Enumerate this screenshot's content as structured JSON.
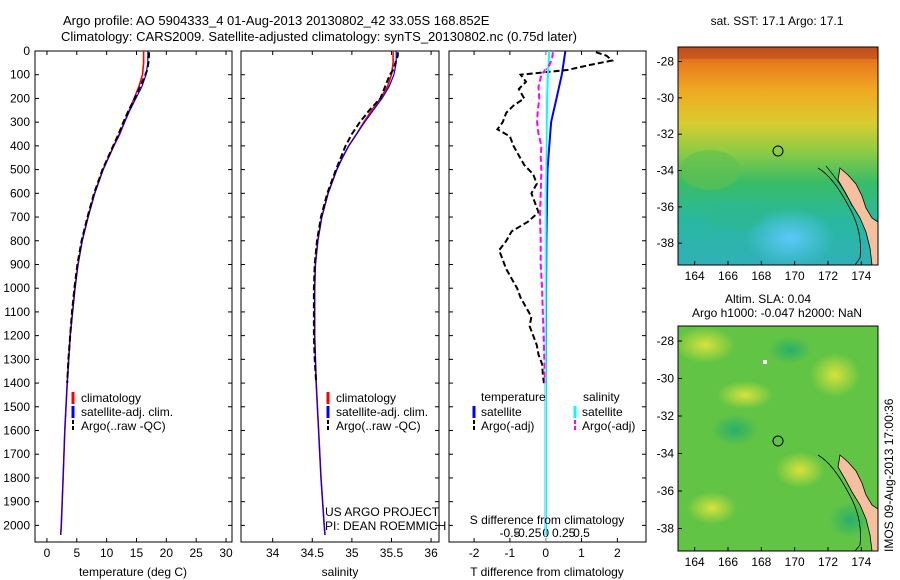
{
  "titles": {
    "line1": "Argo profile: AO 5904333_4 01-Aug-2013 20130802_42 33.05S 168.852E",
    "line2": "Climatology: CARS2009. Satellite-adjusted climatology: synTS_20130802.nc (0.75d later)"
  },
  "depth_ticks": [
    "0",
    "100",
    "200",
    "300",
    "400",
    "500",
    "600",
    "700",
    "800",
    "900",
    "1000",
    "1100",
    "1200",
    "1300",
    "1400",
    "1500",
    "1600",
    "1700",
    "1800",
    "1900",
    "2000"
  ],
  "legend_prof": {
    "clim": "climatology",
    "sat": "satellite-adj. clim.",
    "argo": "Argo(..raw -QC)"
  },
  "legend_diff": {
    "temp_head": "temperature",
    "sal_head": "salinity",
    "sat": "satellite",
    "argo": "Argo(-adj)"
  },
  "project": {
    "line1": "US ARGO PROJECT",
    "line2": "PI: DEAN ROEMMICH"
  },
  "colors": {
    "clim": "#ff0000",
    "sat": "#0000ff",
    "argo": "#000000",
    "sal_sat": "#00ffff",
    "sal_argo": "#ff00ff"
  },
  "chart_data": [
    {
      "type": "line",
      "name": "temperature profile",
      "xlabel": "temperature (deg C)",
      "ylabel": "",
      "xlim": [
        -2,
        31
      ],
      "ylim": [
        2070,
        0
      ],
      "xticks": [
        0,
        5,
        10,
        15,
        20,
        25,
        30
      ],
      "legend": "bottom-left",
      "series": [
        {
          "name": "climatology",
          "depth": [
            0,
            50,
            100,
            150,
            200,
            250,
            300,
            350,
            400,
            500,
            600,
            700,
            800,
            900,
            1000,
            1200,
            1400,
            1600,
            1800,
            2000,
            2040
          ],
          "values": [
            16.2,
            16.2,
            16.0,
            15.4,
            14.6,
            13.8,
            13.0,
            12.2,
            11.2,
            9.4,
            8.0,
            6.9,
            5.9,
            5.2,
            4.7,
            3.9,
            3.4,
            3.0,
            2.7,
            2.4,
            2.3
          ]
        },
        {
          "name": "satellite-adj. clim.",
          "depth": [
            0,
            50,
            100,
            150,
            200,
            250,
            300,
            350,
            400,
            500,
            600,
            700,
            800,
            900,
            1000,
            1200,
            1400,
            1600,
            1800,
            2000,
            2040
          ],
          "values": [
            16.9,
            16.9,
            16.6,
            15.9,
            14.9,
            13.9,
            13.0,
            12.1,
            11.2,
            9.4,
            8.0,
            6.9,
            5.9,
            5.2,
            4.7,
            3.9,
            3.4,
            3.0,
            2.7,
            2.4,
            2.3
          ]
        },
        {
          "name": "Argo(..raw -QC)",
          "depth": [
            5,
            20,
            50,
            80,
            100,
            150,
            200,
            250,
            300,
            350,
            400,
            500,
            600,
            700,
            800,
            900,
            1000,
            1100,
            1200,
            1300,
            1400
          ],
          "values": [
            17.1,
            17.1,
            17.0,
            16.8,
            16.5,
            15.6,
            14.7,
            13.7,
            12.8,
            12.0,
            11.1,
            9.3,
            7.9,
            6.8,
            5.8,
            5.1,
            4.6,
            4.2,
            3.9,
            3.6,
            3.4
          ]
        }
      ]
    },
    {
      "type": "line",
      "name": "salinity profile",
      "xlabel": "salinity",
      "xlim": [
        33.6,
        36.1
      ],
      "ylim": [
        2070,
        0
      ],
      "xticks": [
        34,
        34.5,
        35,
        35.5,
        36
      ],
      "xticklabels": [
        "34",
        "34.5",
        "35",
        "35.5",
        "36"
      ],
      "legend": "bottom-left",
      "series": [
        {
          "name": "climatology",
          "depth": [
            0,
            50,
            100,
            150,
            200,
            250,
            300,
            350,
            400,
            450,
            500,
            600,
            700,
            800,
            900,
            1000,
            1200,
            1400,
            1600,
            1800,
            2000,
            2040
          ],
          "values": [
            35.52,
            35.52,
            35.5,
            35.45,
            35.36,
            35.25,
            35.15,
            35.06,
            34.96,
            34.88,
            34.81,
            34.7,
            34.62,
            34.57,
            34.54,
            34.53,
            34.53,
            34.55,
            34.58,
            34.61,
            34.65,
            34.66
          ]
        },
        {
          "name": "satellite-adj. clim.",
          "depth": [
            0,
            50,
            100,
            150,
            200,
            250,
            300,
            350,
            400,
            450,
            500,
            600,
            700,
            800,
            900,
            1000,
            1200,
            1400,
            1600,
            1800,
            2000,
            2040
          ],
          "values": [
            35.56,
            35.56,
            35.53,
            35.47,
            35.38,
            35.27,
            35.16,
            35.06,
            34.96,
            34.88,
            34.81,
            34.7,
            34.62,
            34.57,
            34.54,
            34.53,
            34.53,
            34.55,
            34.58,
            34.61,
            34.65,
            34.66
          ]
        },
        {
          "name": "Argo(..raw -QC)",
          "depth": [
            5,
            20,
            50,
            80,
            100,
            150,
            200,
            250,
            300,
            350,
            400,
            450,
            500,
            600,
            700,
            800,
            900,
            1000,
            1100,
            1200,
            1300,
            1400
          ],
          "values": [
            35.58,
            35.58,
            35.55,
            35.52,
            35.48,
            35.42,
            35.36,
            35.22,
            35.1,
            35.0,
            34.92,
            34.86,
            34.8,
            34.69,
            34.61,
            34.56,
            34.53,
            34.52,
            34.52,
            34.52,
            34.53,
            34.55
          ]
        }
      ]
    },
    {
      "type": "line",
      "name": "difference from climatology",
      "xlabel": "T difference from climatology",
      "xlabel_top": "S difference from climatology",
      "xlim": [
        -2.7,
        2.8
      ],
      "ylim": [
        2070,
        0
      ],
      "xticks": [
        -2,
        -1,
        0,
        1,
        2
      ],
      "xticks_top": [
        -0.5,
        -0.25,
        0,
        0.25,
        0.5
      ],
      "legend": "bottom",
      "series": [
        {
          "name": "temperature satellite",
          "depth": [
            0,
            100,
            200,
            300,
            500,
            800,
            1000,
            1500,
            2000,
            2040
          ],
          "values": [
            0.55,
            0.45,
            0.3,
            0.15,
            0.05,
            0.02,
            0.01,
            0.0,
            0.0,
            0.0
          ]
        },
        {
          "name": "temperature Argo(-adj)",
          "depth": [
            5,
            20,
            40,
            60,
            80,
            100,
            130,
            160,
            200,
            230,
            260,
            300,
            330,
            360,
            400,
            440,
            480,
            520,
            560,
            600,
            640,
            680,
            720,
            760,
            800,
            840,
            880,
            920,
            960,
            1000,
            1040,
            1080,
            1120,
            1160,
            1200,
            1240,
            1280,
            1320,
            1360,
            1400
          ],
          "values": [
            1.4,
            1.7,
            1.85,
            1.2,
            0.6,
            -0.7,
            -0.55,
            -0.75,
            -0.6,
            -0.9,
            -1.1,
            -1.2,
            -1.35,
            -1.0,
            -0.9,
            -0.75,
            -0.6,
            -0.35,
            -0.25,
            -0.4,
            -0.3,
            -0.2,
            -0.5,
            -0.95,
            -1.1,
            -1.3,
            -1.2,
            -1.1,
            -0.95,
            -0.8,
            -0.7,
            -0.55,
            -0.4,
            -0.45,
            -0.35,
            -0.25,
            -0.2,
            -0.1,
            -0.08,
            -0.05
          ]
        },
        {
          "name": "salinity satellite",
          "depth": [
            0,
            50,
            100,
            200,
            400,
            600,
            1000,
            1500,
            2000,
            2040
          ],
          "values": [
            0.05,
            0.04,
            0.03,
            0.02,
            0.01,
            0.0,
            0.0,
            0.0,
            0.0,
            0.0
          ]
        },
        {
          "name": "salinity Argo(-adj)",
          "depth": [
            5,
            30,
            60,
            100,
            150,
            200,
            250,
            300,
            350,
            400,
            450,
            500,
            600,
            700,
            800,
            900,
            1000,
            1100,
            1200,
            1300,
            1400
          ],
          "values": [
            0.1,
            0.09,
            0.05,
            -0.06,
            -0.1,
            -0.09,
            -0.11,
            -0.12,
            -0.1,
            -0.06,
            -0.07,
            -0.06,
            -0.07,
            -0.08,
            -0.07,
            -0.07,
            -0.05,
            -0.04,
            -0.03,
            -0.02,
            -0.01
          ]
        }
      ]
    },
    {
      "type": "heatmap",
      "name": "SST map",
      "title": "sat. SST: 17.1  Argo: 17.1",
      "xlim": [
        163,
        175
      ],
      "ylim": [
        -39.2,
        -27.2
      ],
      "xticks": [
        164,
        166,
        168,
        170,
        172,
        174
      ],
      "yticks": [
        -28,
        -30,
        -32,
        -34,
        -36,
        -38
      ],
      "float_position": {
        "lon": 168.852,
        "lat": -33.05
      }
    },
    {
      "type": "heatmap",
      "name": "SLA map",
      "title_line1": "Altim. SLA: 0.04",
      "title_line2": "Argo h1000: -0.047 h2000: NaN",
      "xlim": [
        163,
        175
      ],
      "ylim": [
        -39.2,
        -27.2
      ],
      "xticks": [
        164,
        166,
        168,
        170,
        172,
        174
      ],
      "yticks": [
        -28,
        -30,
        -32,
        -34,
        -36,
        -38
      ],
      "float_position": {
        "lon": 168.852,
        "lat": -33.05
      }
    }
  ],
  "stamp": "IMOS 09-Aug-2013 17:00:36"
}
